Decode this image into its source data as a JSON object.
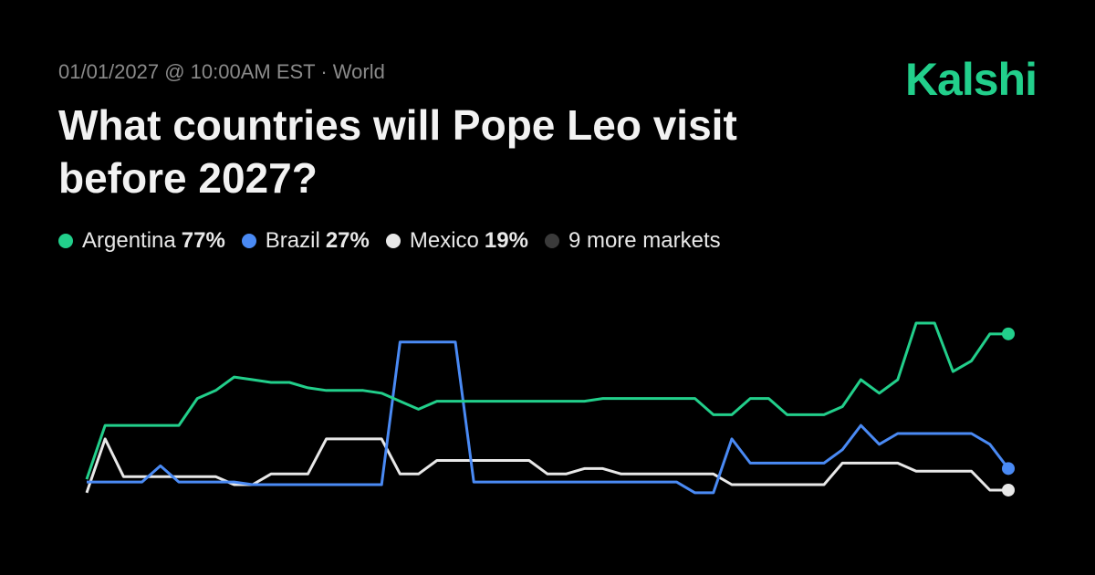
{
  "header": {
    "subtitle": "01/01/2027 @ 10:00AM EST · World",
    "brand": "Kalshi"
  },
  "chart_data": {
    "type": "line",
    "title": "What countries will Pope Leo visit before 2027?",
    "ylim": [
      0,
      100
    ],
    "series": [
      {
        "name": "Argentina",
        "color": "#22cf8b",
        "last_label": "77%",
        "values": [
          23,
          43,
          43,
          43,
          43,
          43,
          53,
          56,
          61,
          60,
          59,
          59,
          57,
          56,
          56,
          56,
          55,
          52,
          49,
          52,
          52,
          52,
          52,
          52,
          52,
          52,
          52,
          52,
          53,
          53,
          53,
          53,
          53,
          53,
          47,
          47,
          53,
          53,
          47,
          47,
          47,
          50,
          60,
          55,
          60,
          81,
          81,
          63,
          67,
          77,
          77
        ]
      },
      {
        "name": "Brazil",
        "color": "#4a8af4",
        "last_label": "27%",
        "values": [
          22,
          22,
          22,
          22,
          28,
          22,
          22,
          22,
          22,
          21,
          21,
          21,
          21,
          21,
          21,
          21,
          21,
          74,
          74,
          74,
          74,
          22,
          22,
          22,
          22,
          22,
          22,
          22,
          22,
          22,
          22,
          22,
          22,
          18,
          18,
          38,
          29,
          29,
          29,
          29,
          29,
          34,
          43,
          36,
          40,
          40,
          40,
          40,
          40,
          36,
          27
        ]
      },
      {
        "name": "Mexico",
        "color": "#e8e8e8",
        "last_label": "19%",
        "values": [
          18,
          38,
          24,
          24,
          24,
          24,
          24,
          24,
          21,
          21,
          25,
          25,
          25,
          38,
          38,
          38,
          38,
          25,
          25,
          30,
          30,
          30,
          30,
          30,
          30,
          25,
          25,
          27,
          27,
          25,
          25,
          25,
          25,
          25,
          25,
          21,
          21,
          21,
          21,
          21,
          21,
          29,
          29,
          29,
          29,
          26,
          26,
          26,
          26,
          19,
          19
        ]
      }
    ],
    "more_markets": {
      "label": "9 more markets",
      "color": "#3a3a3a"
    }
  }
}
